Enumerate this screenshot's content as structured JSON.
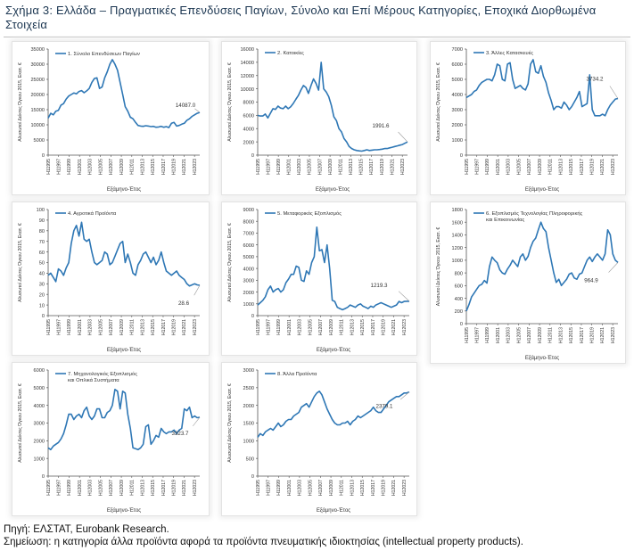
{
  "title": "Σχήμα 3: Ελλάδα – Πραγματικές Επενδύσεις Παγίων, Σύνολο και Επί Μέρους Κατηγορίες, Εποχικά Διορθωμένα Στοιχεία",
  "source": "Πηγή: ΕΛΣΤΑΤ, Eurobank Research.",
  "note": "Σημείωση: η κατηγορία άλλα προϊόντα αφορά τα προϊόντα πνευματικής ιδιοκτησίας (intellectual property products).",
  "colors": {
    "line": "#2e77b5",
    "axis": "#555555",
    "callout": "#9a9a9a"
  },
  "chart_data": [
    {
      "id": "total",
      "type": "line",
      "legend": "1. Σύνολο Επενδύσεων Παγίων",
      "ylabel": "Αλυσωτοί Δείκτες Όγκου 2015, Εκατ. €",
      "xlabel": "Εξάμηνο-Έτος",
      "ylim": [
        0,
        35000
      ],
      "yticks": [
        0,
        5000,
        10000,
        15000,
        20000,
        25000,
        30000,
        35000
      ],
      "xticks": [
        "H1 1995",
        "H1 1997",
        "H1 1999",
        "H1 2001",
        "H1 2003",
        "H1 2005",
        "H1 2007",
        "H1 2009",
        "H1 2011",
        "H1 2013",
        "H1 2015",
        "H1 2017",
        "H1 2019",
        "H1 2021",
        "H1 2023"
      ],
      "x_range": [
        "H1 1995",
        "H1 2024"
      ],
      "annotation": {
        "text": "14087.0",
        "value": 14087.0
      },
      "values": [
        12200,
        13800,
        13300,
        14500,
        14800,
        16500,
        17000,
        18500,
        19500,
        20000,
        20500,
        20200,
        21000,
        21300,
        20600,
        21200,
        22000,
        24000,
        25300,
        25500,
        22000,
        22500,
        25500,
        27500,
        30000,
        31500,
        30000,
        28000,
        24000,
        20000,
        16000,
        14500,
        12500,
        12000,
        10800,
        9800,
        9600,
        9500,
        9700,
        9600,
        9400,
        9500,
        9200,
        9300,
        9500,
        9200,
        9400,
        9100,
        10500,
        10800,
        9600,
        9800,
        10200,
        10500,
        11500,
        12000,
        12800,
        13300,
        13800,
        14087
      ]
    },
    {
      "id": "housing",
      "type": "line",
      "legend": "2. Κατοικίες",
      "ylabel": "Αλυσωτοί Δείκτες Όγκου 2015, Εκατ. €",
      "xlabel": "Εξάμηνο-Έτος",
      "ylim": [
        0,
        16000
      ],
      "yticks": [
        0,
        2000,
        4000,
        6000,
        8000,
        10000,
        12000,
        14000,
        16000
      ],
      "xticks": [
        "H1 1995",
        "H1 1997",
        "H1 1999",
        "H1 2001",
        "H1 2003",
        "H1 2005",
        "H1 2007",
        "H1 2009",
        "H1 2011",
        "H1 2013",
        "H1 2015",
        "H1 2017",
        "H1 2019",
        "H1 2021",
        "H1 2023"
      ],
      "x_range": [
        "H1 1995",
        "H1 2024"
      ],
      "annotation": {
        "text": "1991.6",
        "value": 1991.6
      },
      "values": [
        6000,
        5900,
        5900,
        6200,
        5600,
        6300,
        7000,
        6900,
        7400,
        7100,
        7000,
        7400,
        7000,
        7300,
        7800,
        8400,
        9000,
        9800,
        10500,
        10200,
        9300,
        10500,
        11500,
        10800,
        9800,
        14000,
        10000,
        9500,
        8800,
        7500,
        5800,
        5200,
        4000,
        3500,
        2500,
        2000,
        1300,
        1000,
        800,
        700,
        650,
        600,
        700,
        800,
        700,
        750,
        800,
        800,
        850,
        900,
        1000,
        1000,
        1100,
        1200,
        1300,
        1400,
        1500,
        1600,
        1800,
        1992
      ]
    },
    {
      "id": "other-construction",
      "type": "line",
      "legend": "3. Άλλες Κατασκευές",
      "ylabel": "Αλυσωτοί Δείκτες Όγκου 2015, Εκατ. €",
      "xlabel": "Εξάμηνο-Έτος",
      "ylim": [
        0,
        7000
      ],
      "yticks": [
        0,
        1000,
        2000,
        3000,
        4000,
        5000,
        6000,
        7000
      ],
      "xticks": [
        "H1 1995",
        "H1 1997",
        "H1 1999",
        "H1 2001",
        "H1 2003",
        "H1 2005",
        "H1 2007",
        "H1 2009",
        "H1 2011",
        "H1 2013",
        "H1 2015",
        "H1 2017",
        "H1 2019",
        "H1 2021",
        "H1 2023"
      ],
      "x_range": [
        "H1 1995",
        "H1 2024"
      ],
      "annotation": {
        "text": "3734.2",
        "value": 3734.2
      },
      "values": [
        3800,
        3900,
        4000,
        4200,
        4300,
        4600,
        4800,
        4900,
        5000,
        5000,
        4900,
        5300,
        6000,
        5900,
        5000,
        4900,
        6000,
        6100,
        5000,
        4400,
        4500,
        4600,
        4400,
        4300,
        4700,
        6000,
        6300,
        5500,
        5400,
        5900,
        5200,
        4800,
        4100,
        3600,
        3000,
        3200,
        3200,
        3100,
        3500,
        3300,
        3000,
        3200,
        3500,
        3800,
        4200,
        3200,
        3300,
        3400,
        5300,
        3000,
        2600,
        2600,
        2600,
        2700,
        2600,
        3000,
        3300,
        3500,
        3700,
        3734
      ]
    },
    {
      "id": "agricultural",
      "type": "line",
      "legend": "4. Αγροτικά Προϊόντα",
      "ylabel": "Αλυσωτοί Δείκτες Όγκου 2015, Εκατ. €",
      "xlabel": "Εξάμηνο-Έτος",
      "ylim": [
        0,
        100
      ],
      "yticks": [
        0,
        10,
        20,
        30,
        40,
        50,
        60,
        70,
        80,
        90,
        100
      ],
      "xticks": [
        "H1 1995",
        "H1 1997",
        "H1 1999",
        "H1 2001",
        "H1 2003",
        "H1 2005",
        "H1 2007",
        "H1 2009",
        "H1 2011",
        "H1 2013",
        "H1 2015",
        "H1 2017",
        "H1 2019",
        "H1 2021",
        "H1 2023"
      ],
      "x_range": [
        "H1 1995",
        "H1 2024"
      ],
      "annotation": {
        "text": "28.6",
        "value": 28.6
      },
      "values": [
        38,
        40,
        36,
        32,
        44,
        42,
        38,
        45,
        50,
        68,
        80,
        85,
        75,
        88,
        72,
        70,
        72,
        60,
        50,
        48,
        50,
        52,
        60,
        58,
        48,
        50,
        56,
        62,
        68,
        70,
        50,
        58,
        50,
        40,
        38,
        48,
        52,
        58,
        60,
        55,
        50,
        55,
        48,
        52,
        60,
        50,
        42,
        40,
        38,
        40,
        42,
        38,
        36,
        34,
        30,
        28,
        29,
        30,
        29,
        28.6
      ]
    },
    {
      "id": "transport-equipment",
      "type": "line",
      "legend": "5. Μεταφορικός Εξοπλισμός",
      "ylabel": "Αλυσωτοί Δείκτες Όγκου 2015, Εκατ. €",
      "xlabel": "Εξάμηνο-Έτος",
      "ylim": [
        0,
        9000
      ],
      "yticks": [
        0,
        1000,
        2000,
        3000,
        4000,
        5000,
        6000,
        7000,
        8000,
        9000
      ],
      "xticks": [
        "H1 1995",
        "H1 1997",
        "H1 1999",
        "H1 2001",
        "H1 2003",
        "H1 2005",
        "H1 2007",
        "H1 2009",
        "H1 2011",
        "H1 2013",
        "H1 2015",
        "H1 2017",
        "H1 2019",
        "H1 2021",
        "H1 2023"
      ],
      "x_range": [
        "H1 1995",
        "H1 2024"
      ],
      "annotation": {
        "text": "1219.3",
        "value": 1219.3
      },
      "values": [
        900,
        1100,
        1300,
        1600,
        2200,
        2500,
        2000,
        2200,
        2300,
        2000,
        2200,
        2800,
        3100,
        3500,
        3500,
        4200,
        4100,
        3000,
        2900,
        3800,
        3500,
        4500,
        5000,
        7500,
        5500,
        5600,
        4500,
        6000,
        4000,
        1300,
        1200,
        700,
        600,
        500,
        600,
        700,
        900,
        800,
        700,
        900,
        1000,
        800,
        700,
        600,
        800,
        700,
        900,
        1000,
        1100,
        1000,
        900,
        800,
        700,
        800,
        900,
        1200,
        1100,
        1200,
        1219,
        1219
      ]
    },
    {
      "id": "ict-equipment",
      "type": "line",
      "legend": "6. Εξοπλισμός Τεχνολογίας Πληροφορικής και Επικοινωνίας",
      "ylabel": "Αλυσωτοί Δείκτες Όγκου 2015, Εκατ. €",
      "xlabel": "Εξάμηνο-Έτος",
      "ylim": [
        0,
        1800
      ],
      "yticks": [
        0,
        200,
        400,
        600,
        800,
        1000,
        1200,
        1400,
        1600,
        1800
      ],
      "xticks": [
        "H1 1995",
        "H1 1997",
        "H1 1999",
        "H1 2001",
        "H1 2003",
        "H1 2005",
        "H1 2007",
        "H1 2009",
        "H1 2011",
        "H1 2013",
        "H1 2015",
        "H1 2017",
        "H1 2019",
        "H1 2021",
        "H1 2023"
      ],
      "x_range": [
        "H1 1995",
        "H1 2024"
      ],
      "annotation": {
        "text": "964.9",
        "value": 964.9
      },
      "values": [
        200,
        300,
        420,
        480,
        540,
        600,
        620,
        680,
        640,
        900,
        1050,
        1000,
        960,
        850,
        800,
        780,
        860,
        920,
        1000,
        950,
        900,
        1050,
        1100,
        1000,
        1060,
        1200,
        1300,
        1350,
        1480,
        1600,
        1500,
        1450,
        1200,
        1000,
        800,
        650,
        700,
        600,
        650,
        700,
        780,
        800,
        720,
        700,
        780,
        800,
        900,
        1000,
        1050,
        980,
        1050,
        1100,
        1050,
        1000,
        1100,
        1480,
        1400,
        1100,
        1000,
        965
      ]
    },
    {
      "id": "machinery-weapons",
      "type": "line",
      "legend": "7. Μηχανολογικός Εξοπλισμός και Οπλικά Συστήματα",
      "ylabel": "Αλυσωτοί Δείκτες Όγκου 2015, Εκατ. €",
      "xlabel": "Εξάμηνο-Έτος",
      "ylim": [
        0,
        6000
      ],
      "yticks": [
        0,
        1000,
        2000,
        3000,
        4000,
        5000,
        6000
      ],
      "xticks": [
        "H1 1995",
        "H1 1997",
        "H1 1999",
        "H1 2001",
        "H1 2003",
        "H1 2005",
        "H1 2007",
        "H1 2009",
        "H1 2011",
        "H1 2013",
        "H1 2015",
        "H1 2017",
        "H1 2019",
        "H1 2021",
        "H1 2023"
      ],
      "x_range": [
        "H1 1995",
        "H1 2024"
      ],
      "annotation": {
        "text": "3323.7",
        "value": 3323.7
      },
      "values": [
        1600,
        1500,
        1700,
        1800,
        1900,
        2100,
        2400,
        2900,
        3500,
        3500,
        3200,
        3400,
        3500,
        3300,
        3700,
        3900,
        3400,
        3200,
        3400,
        3800,
        3800,
        3300,
        3300,
        3600,
        3700,
        4000,
        4900,
        4800,
        3800,
        4800,
        4700,
        3500,
        2700,
        1600,
        1550,
        1500,
        1600,
        1800,
        2800,
        2900,
        1800,
        2000,
        2300,
        2200,
        2700,
        2500,
        2400,
        2500,
        2500,
        2600,
        2400,
        2600,
        2700,
        3800,
        3700,
        3900,
        3300,
        3400,
        3300,
        3324
      ]
    },
    {
      "id": "other-products",
      "type": "line",
      "legend": "8. Άλλα Προϊόντα",
      "ylabel": "Αλυσωτοί Δείκτες Όγκου 2015, Εκατ. €",
      "xlabel": "Εξάμηνο-Έτος",
      "ylim": [
        0,
        3000
      ],
      "yticks": [
        0,
        500,
        1000,
        1500,
        2000,
        2500,
        3000
      ],
      "xticks": [
        "H1 1995",
        "H1 1997",
        "H1 1999",
        "H1 2001",
        "H1 2003",
        "H1 2005",
        "H1 2007",
        "H1 2009",
        "H1 2011",
        "H1 2013",
        "H1 2015",
        "H1 2017",
        "H1 2019",
        "H1 2021",
        "H1 2023"
      ],
      "x_range": [
        "H1 1995",
        "H1 2024"
      ],
      "annotation": {
        "text": "2379.1",
        "value": 2379.1
      },
      "values": [
        1100,
        1200,
        1150,
        1250,
        1300,
        1350,
        1300,
        1400,
        1500,
        1400,
        1450,
        1550,
        1600,
        1600,
        1700,
        1750,
        1800,
        1950,
        2000,
        2050,
        1950,
        2100,
        2250,
        2350,
        2400,
        2300,
        2100,
        1900,
        1750,
        1600,
        1500,
        1450,
        1450,
        1500,
        1500,
        1550,
        1450,
        1550,
        1600,
        1700,
        1650,
        1700,
        1750,
        1800,
        1850,
        1950,
        1850,
        1800,
        1800,
        1900,
        2000,
        2100,
        2150,
        2200,
        2250,
        2250,
        2300,
        2350,
        2350,
        2379
      ]
    }
  ]
}
